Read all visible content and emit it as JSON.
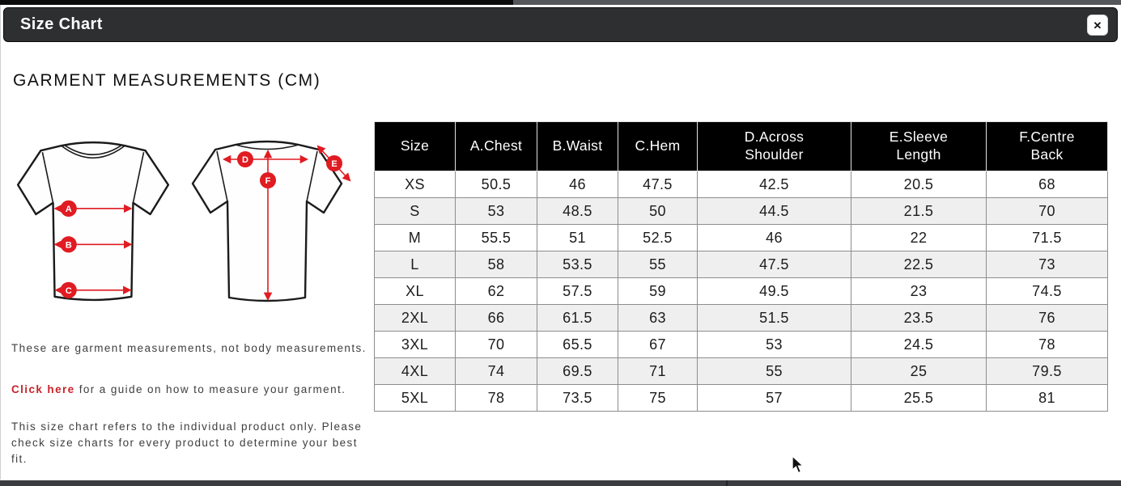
{
  "modal": {
    "title": "Size Chart",
    "close_glyph": "✕"
  },
  "heading": "GARMENT MEASUREMENTS (CM)",
  "diagram": {
    "front_labels": [
      "A",
      "B",
      "C"
    ],
    "back_labels": [
      "D",
      "E",
      "F"
    ]
  },
  "notes": {
    "note1": "These are garment measurements, not body measurements.",
    "note2_link": "Click here",
    "note2_rest": " for a guide on how to measure your garment.",
    "note3": "This size chart refers to the individual product only. Please check size charts for every product to determine your best fit."
  },
  "chart_data": {
    "type": "table",
    "title": "GARMENT MEASUREMENTS (CM)",
    "columns": [
      "Size",
      "A.Chest",
      "B.Waist",
      "C.Hem",
      "D.Across\nShoulder",
      "E.Sleeve\nLength",
      "F.Centre\nBack"
    ],
    "rows": [
      [
        "XS",
        "50.5",
        "46",
        "47.5",
        "42.5",
        "20.5",
        "68"
      ],
      [
        "S",
        "53",
        "48.5",
        "50",
        "44.5",
        "21.5",
        "70"
      ],
      [
        "M",
        "55.5",
        "51",
        "52.5",
        "46",
        "22",
        "71.5"
      ],
      [
        "L",
        "58",
        "53.5",
        "55",
        "47.5",
        "22.5",
        "73"
      ],
      [
        "XL",
        "62",
        "57.5",
        "59",
        "49.5",
        "23",
        "74.5"
      ],
      [
        "2XL",
        "66",
        "61.5",
        "63",
        "51.5",
        "23.5",
        "76"
      ],
      [
        "3XL",
        "70",
        "65.5",
        "67",
        "53",
        "24.5",
        "78"
      ],
      [
        "4XL",
        "74",
        "69.5",
        "71",
        "55",
        "25",
        "79.5"
      ],
      [
        "5XL",
        "78",
        "73.5",
        "75",
        "57",
        "25.5",
        "81"
      ]
    ]
  },
  "colors": {
    "accent_red": "#e01b22",
    "link_red": "#c9232a",
    "modal_header_bg": "#2e2f31",
    "table_header_bg": "#000000",
    "row_alt_bg": "#efefef"
  }
}
